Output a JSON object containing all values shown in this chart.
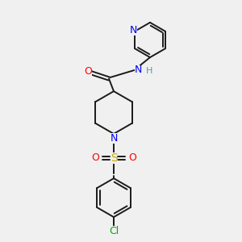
{
  "bg_color": "#f0f0f0",
  "bond_color": "#1a1a1a",
  "n_color": "#0000ff",
  "o_color": "#ff0000",
  "s_color": "#ccaa00",
  "cl_color": "#00aa00",
  "h_color": "#5599aa",
  "figsize": [
    3.0,
    3.0
  ],
  "dpi": 100,
  "xlim": [
    0,
    10
  ],
  "ylim": [
    0,
    10
  ]
}
